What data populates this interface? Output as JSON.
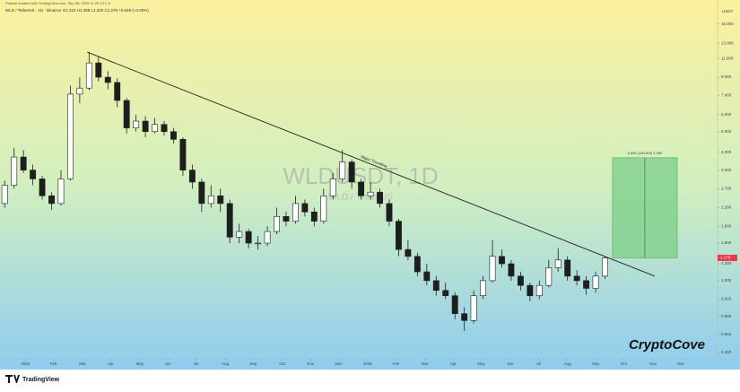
{
  "header": {
    "publisher": "Publish created with TradingView.com, Sep 08, 2025 11:25 UTC-5",
    "symbol_info": "WLD / TetherUS · 1D · Binance  O1.222 H1.288 L1.220 C1.279 +0.049 (+4.00%)"
  },
  "chart_data": {
    "type": "candlestick",
    "watermark": "WLDUSDT, 1D",
    "watermark_subtitle": "WLD / TetherUS",
    "y_unit": "USDT",
    "log_scale": true,
    "ylim": [
      0.43,
      18.8
    ],
    "xlim": [
      -0.5,
      76
    ],
    "candle_color": "#1e1e1e",
    "grid": false,
    "yticks": [
      {
        "value": 16,
        "label": "16.000"
      },
      {
        "value": 13,
        "label": "13.000"
      },
      {
        "value": 11,
        "label": "11.000"
      },
      {
        "value": 9,
        "label": "9.000"
      },
      {
        "value": 7.4,
        "label": "7.400"
      },
      {
        "value": 6,
        "label": "6.000"
      },
      {
        "value": 5,
        "label": "5.000"
      },
      {
        "value": 4,
        "label": "4.000"
      },
      {
        "value": 3.3,
        "label": "3.300"
      },
      {
        "value": 2.7,
        "label": "2.700"
      },
      {
        "value": 2.2,
        "label": "2.200"
      },
      {
        "value": 1.8,
        "label": "1.800"
      },
      {
        "value": 1.5,
        "label": "1.500"
      },
      {
        "value": 1.2,
        "label": "1.200"
      },
      {
        "value": 1,
        "label": "1.000"
      },
      {
        "value": 0.82,
        "label": "0.820"
      },
      {
        "value": 0.68,
        "label": "0.680"
      },
      {
        "value": 0.56,
        "label": "0.560"
      },
      {
        "value": 0.46,
        "label": "0.460"
      }
    ],
    "xticks": [
      {
        "value": 2.2,
        "label": "2024"
      },
      {
        "value": 5.2,
        "label": "Feb"
      },
      {
        "value": 8.3,
        "label": "Mar"
      },
      {
        "value": 11.3,
        "label": "Apr"
      },
      {
        "value": 14.4,
        "label": "May"
      },
      {
        "value": 17.4,
        "label": "Jun"
      },
      {
        "value": 20.4,
        "label": "Jul"
      },
      {
        "value": 23.5,
        "label": "Aug"
      },
      {
        "value": 26.5,
        "label": "Sep"
      },
      {
        "value": 29.6,
        "label": "Oct"
      },
      {
        "value": 32.6,
        "label": "Nov"
      },
      {
        "value": 35.6,
        "label": "Dec"
      },
      {
        "value": 38.7,
        "label": "2025"
      },
      {
        "value": 41.7,
        "label": "Feb"
      },
      {
        "value": 44.8,
        "label": "Mar"
      },
      {
        "value": 47.8,
        "label": "Apr"
      },
      {
        "value": 50.8,
        "label": "May"
      },
      {
        "value": 53.9,
        "label": "Jun"
      },
      {
        "value": 56.9,
        "label": "Jul"
      },
      {
        "value": 60.0,
        "label": "Aug"
      },
      {
        "value": 63.0,
        "label": "Sep"
      },
      {
        "value": 66.0,
        "label": "Oct"
      },
      {
        "value": 69.1,
        "label": "Nov"
      },
      {
        "value": 72.1,
        "label": "Dec"
      }
    ],
    "ohlc": [
      [
        2.3,
        2.95,
        2.2,
        2.8
      ],
      [
        2.8,
        4.2,
        2.7,
        3.8
      ],
      [
        3.8,
        4.1,
        3.2,
        3.3
      ],
      [
        3.3,
        3.5,
        2.8,
        3.0
      ],
      [
        3.0,
        3.1,
        2.4,
        2.5
      ],
      [
        2.5,
        2.6,
        2.15,
        2.3
      ],
      [
        2.3,
        3.3,
        2.25,
        3.0
      ],
      [
        3.0,
        8.2,
        2.95,
        7.5
      ],
      [
        7.5,
        9.0,
        6.8,
        8.0
      ],
      [
        8.0,
        11.8,
        7.8,
        10.5
      ],
      [
        10.5,
        11.2,
        8.6,
        9.0
      ],
      [
        9.0,
        9.6,
        7.9,
        8.5
      ],
      [
        8.5,
        8.9,
        6.5,
        7.0
      ],
      [
        7.0,
        7.2,
        4.9,
        5.2
      ],
      [
        5.2,
        6.0,
        5.0,
        5.6
      ],
      [
        5.6,
        5.9,
        4.7,
        5.0
      ],
      [
        5.0,
        5.8,
        4.9,
        5.4
      ],
      [
        5.4,
        5.6,
        4.8,
        5.0
      ],
      [
        5.0,
        5.2,
        4.4,
        4.6
      ],
      [
        4.6,
        4.7,
        3.1,
        3.3
      ],
      [
        3.3,
        3.5,
        2.7,
        2.9
      ],
      [
        2.9,
        3.0,
        2.1,
        2.3
      ],
      [
        2.3,
        2.8,
        2.2,
        2.5
      ],
      [
        2.5,
        2.7,
        2.1,
        2.3
      ],
      [
        2.3,
        2.4,
        1.5,
        1.6
      ],
      [
        1.6,
        1.85,
        1.5,
        1.7
      ],
      [
        1.7,
        1.75,
        1.42,
        1.5
      ],
      [
        1.5,
        1.62,
        1.4,
        1.5
      ],
      [
        1.5,
        1.8,
        1.45,
        1.7
      ],
      [
        1.7,
        2.2,
        1.65,
        2.0
      ],
      [
        2.0,
        2.1,
        1.8,
        1.9
      ],
      [
        1.9,
        2.5,
        1.85,
        2.3
      ],
      [
        2.3,
        2.4,
        2.0,
        2.1
      ],
      [
        2.1,
        2.2,
        1.8,
        1.9
      ],
      [
        1.9,
        2.7,
        1.85,
        2.5
      ],
      [
        2.5,
        3.2,
        2.4,
        3.0
      ],
      [
        3.0,
        4.1,
        2.9,
        3.6
      ],
      [
        3.6,
        3.7,
        2.7,
        2.9
      ],
      [
        2.9,
        3.0,
        2.4,
        2.5
      ],
      [
        2.5,
        2.9,
        2.4,
        2.6
      ],
      [
        2.6,
        2.7,
        2.2,
        2.3
      ],
      [
        2.3,
        2.4,
        1.8,
        1.9
      ],
      [
        1.9,
        1.95,
        1.3,
        1.4
      ],
      [
        1.4,
        1.55,
        1.25,
        1.3
      ],
      [
        1.3,
        1.35,
        1.05,
        1.1
      ],
      [
        1.1,
        1.2,
        0.95,
        1.0
      ],
      [
        1.0,
        1.05,
        0.85,
        0.9
      ],
      [
        0.9,
        0.98,
        0.82,
        0.85
      ],
      [
        0.85,
        0.88,
        0.66,
        0.7
      ],
      [
        0.7,
        0.75,
        0.58,
        0.65
      ],
      [
        0.65,
        0.9,
        0.63,
        0.85
      ],
      [
        0.85,
        1.05,
        0.82,
        1.0
      ],
      [
        1.0,
        1.55,
        0.98,
        1.3
      ],
      [
        1.3,
        1.4,
        1.15,
        1.2
      ],
      [
        1.2,
        1.25,
        1.0,
        1.05
      ],
      [
        1.05,
        1.1,
        0.9,
        0.95
      ],
      [
        0.95,
        0.98,
        0.8,
        0.85
      ],
      [
        0.85,
        1.0,
        0.82,
        0.95
      ],
      [
        0.95,
        1.25,
        0.93,
        1.15
      ],
      [
        1.15,
        1.42,
        1.1,
        1.25
      ],
      [
        1.25,
        1.3,
        1.0,
        1.05
      ],
      [
        1.05,
        1.12,
        0.95,
        1.0
      ],
      [
        1.0,
        1.05,
        0.86,
        0.92
      ],
      [
        0.92,
        1.1,
        0.88,
        1.05
      ],
      [
        1.05,
        1.3,
        1.02,
        1.279
      ]
    ],
    "last_price": 1.279,
    "last_price_color": "#f23645",
    "trendline": {
      "label": "Major Trendline",
      "points": [
        [
          8.8,
          11.8
        ],
        [
          69.3,
          1.05
        ]
      ],
      "color": "#222222"
    },
    "target_box": {
      "label": "2.490 (194.6%) 2.490",
      "x": [
        64.8,
        71.7
      ],
      "y": [
        1.279,
        3.77
      ],
      "color": "#7fcf8c"
    },
    "brand": "CryptoCove"
  },
  "footer": {
    "logo": "TradingView"
  }
}
